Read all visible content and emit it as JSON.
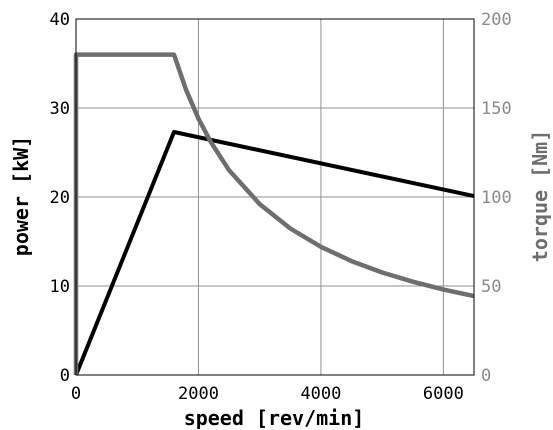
{
  "chart_data": {
    "type": "line",
    "xlabel": "speed [rev/min]",
    "ylabel_left": "power [kW]",
    "ylabel_right": "torque [Nm]",
    "xlim": [
      0,
      6500
    ],
    "ylim_left": [
      0,
      40
    ],
    "ylim_right": [
      0,
      200
    ],
    "x_ticks": [
      0,
      2000,
      4000,
      6000
    ],
    "y_left_ticks": [
      0,
      10,
      20,
      30,
      40
    ],
    "y_right_ticks": [
      0,
      50,
      100,
      150,
      200
    ],
    "grid": true,
    "colors": {
      "power": "#000000",
      "torque": "#6e6e6e",
      "grid": "#909090",
      "axis_right": "#8a8a8a"
    },
    "series": [
      {
        "axis": "left",
        "x": [
          0,
          1600,
          6500
        ],
        "values": [
          0,
          27.3,
          20.1
        ]
      },
      {
        "axis": "right",
        "x": [
          0,
          0,
          1600,
          1800,
          2000,
          2200,
          2500,
          3000,
          3500,
          4000,
          4500,
          5000,
          5500,
          6000,
          6500
        ],
        "values": [
          0,
          180,
          180,
          160,
          144,
          131,
          115,
          96,
          82.3,
          72,
          64,
          57.6,
          52.4,
          48,
          44.3
        ]
      }
    ]
  }
}
